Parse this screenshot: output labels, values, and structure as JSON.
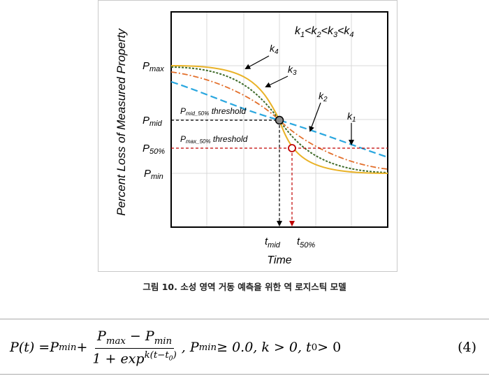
{
  "figure": {
    "y_axis_label": "Percent Loss of Measured Property",
    "x_axis_label": "Time",
    "k_order_label": {
      "k": "k",
      "subs": [
        "1",
        "2",
        "3",
        "4"
      ],
      "sep": "<"
    },
    "y_ticks": [
      {
        "main": "P",
        "sub": "max"
      },
      {
        "main": "P",
        "sub": "mid"
      },
      {
        "main": "P",
        "sub": "50%"
      },
      {
        "main": "P",
        "sub": "min"
      }
    ],
    "x_ticks": [
      {
        "main": "t",
        "sub": "mid"
      },
      {
        "main": "t",
        "sub": "50%"
      }
    ],
    "thresholds": [
      {
        "main": "P",
        "sub": "mid_50%",
        "rest": " threshold"
      },
      {
        "main": "P",
        "sub": "max_50%",
        "rest": " threshold"
      }
    ],
    "curve_labels": [
      {
        "main": "k",
        "sub": "4"
      },
      {
        "main": "k",
        "sub": "3"
      },
      {
        "main": "k",
        "sub": "2"
      },
      {
        "main": "k",
        "sub": "1"
      }
    ],
    "colors": {
      "k1": "#2aa7df",
      "k2": "#e36f2b",
      "k3": "#3f6b2a",
      "k4": "#e9b227",
      "mid_line": "#000000",
      "p50_line": "#c00000",
      "grid": "#d9d9d9"
    }
  },
  "caption": "그림 10. 소성 영역 거동 예측을 위한 역 로지스틱 모델",
  "equation": {
    "lhs": "P(t) = ",
    "pmin": "P",
    "pmin_sub": "min",
    "plus": " + ",
    "num_a": "P",
    "num_a_sub": "max",
    "num_minus": " − ",
    "num_b": "P",
    "num_b_sub": "min",
    "den_prefix": "1 + exp",
    "den_sup": "k(t−t",
    "den_sup_sub": "0",
    "den_sup_close": ")",
    "conditions": ", P",
    "cond_sub": "min",
    "cond_rest": " ≥ 0.0, k > 0, t",
    "cond_t_sub": "0",
    "cond_end": " > 0",
    "number": "(4)"
  }
}
